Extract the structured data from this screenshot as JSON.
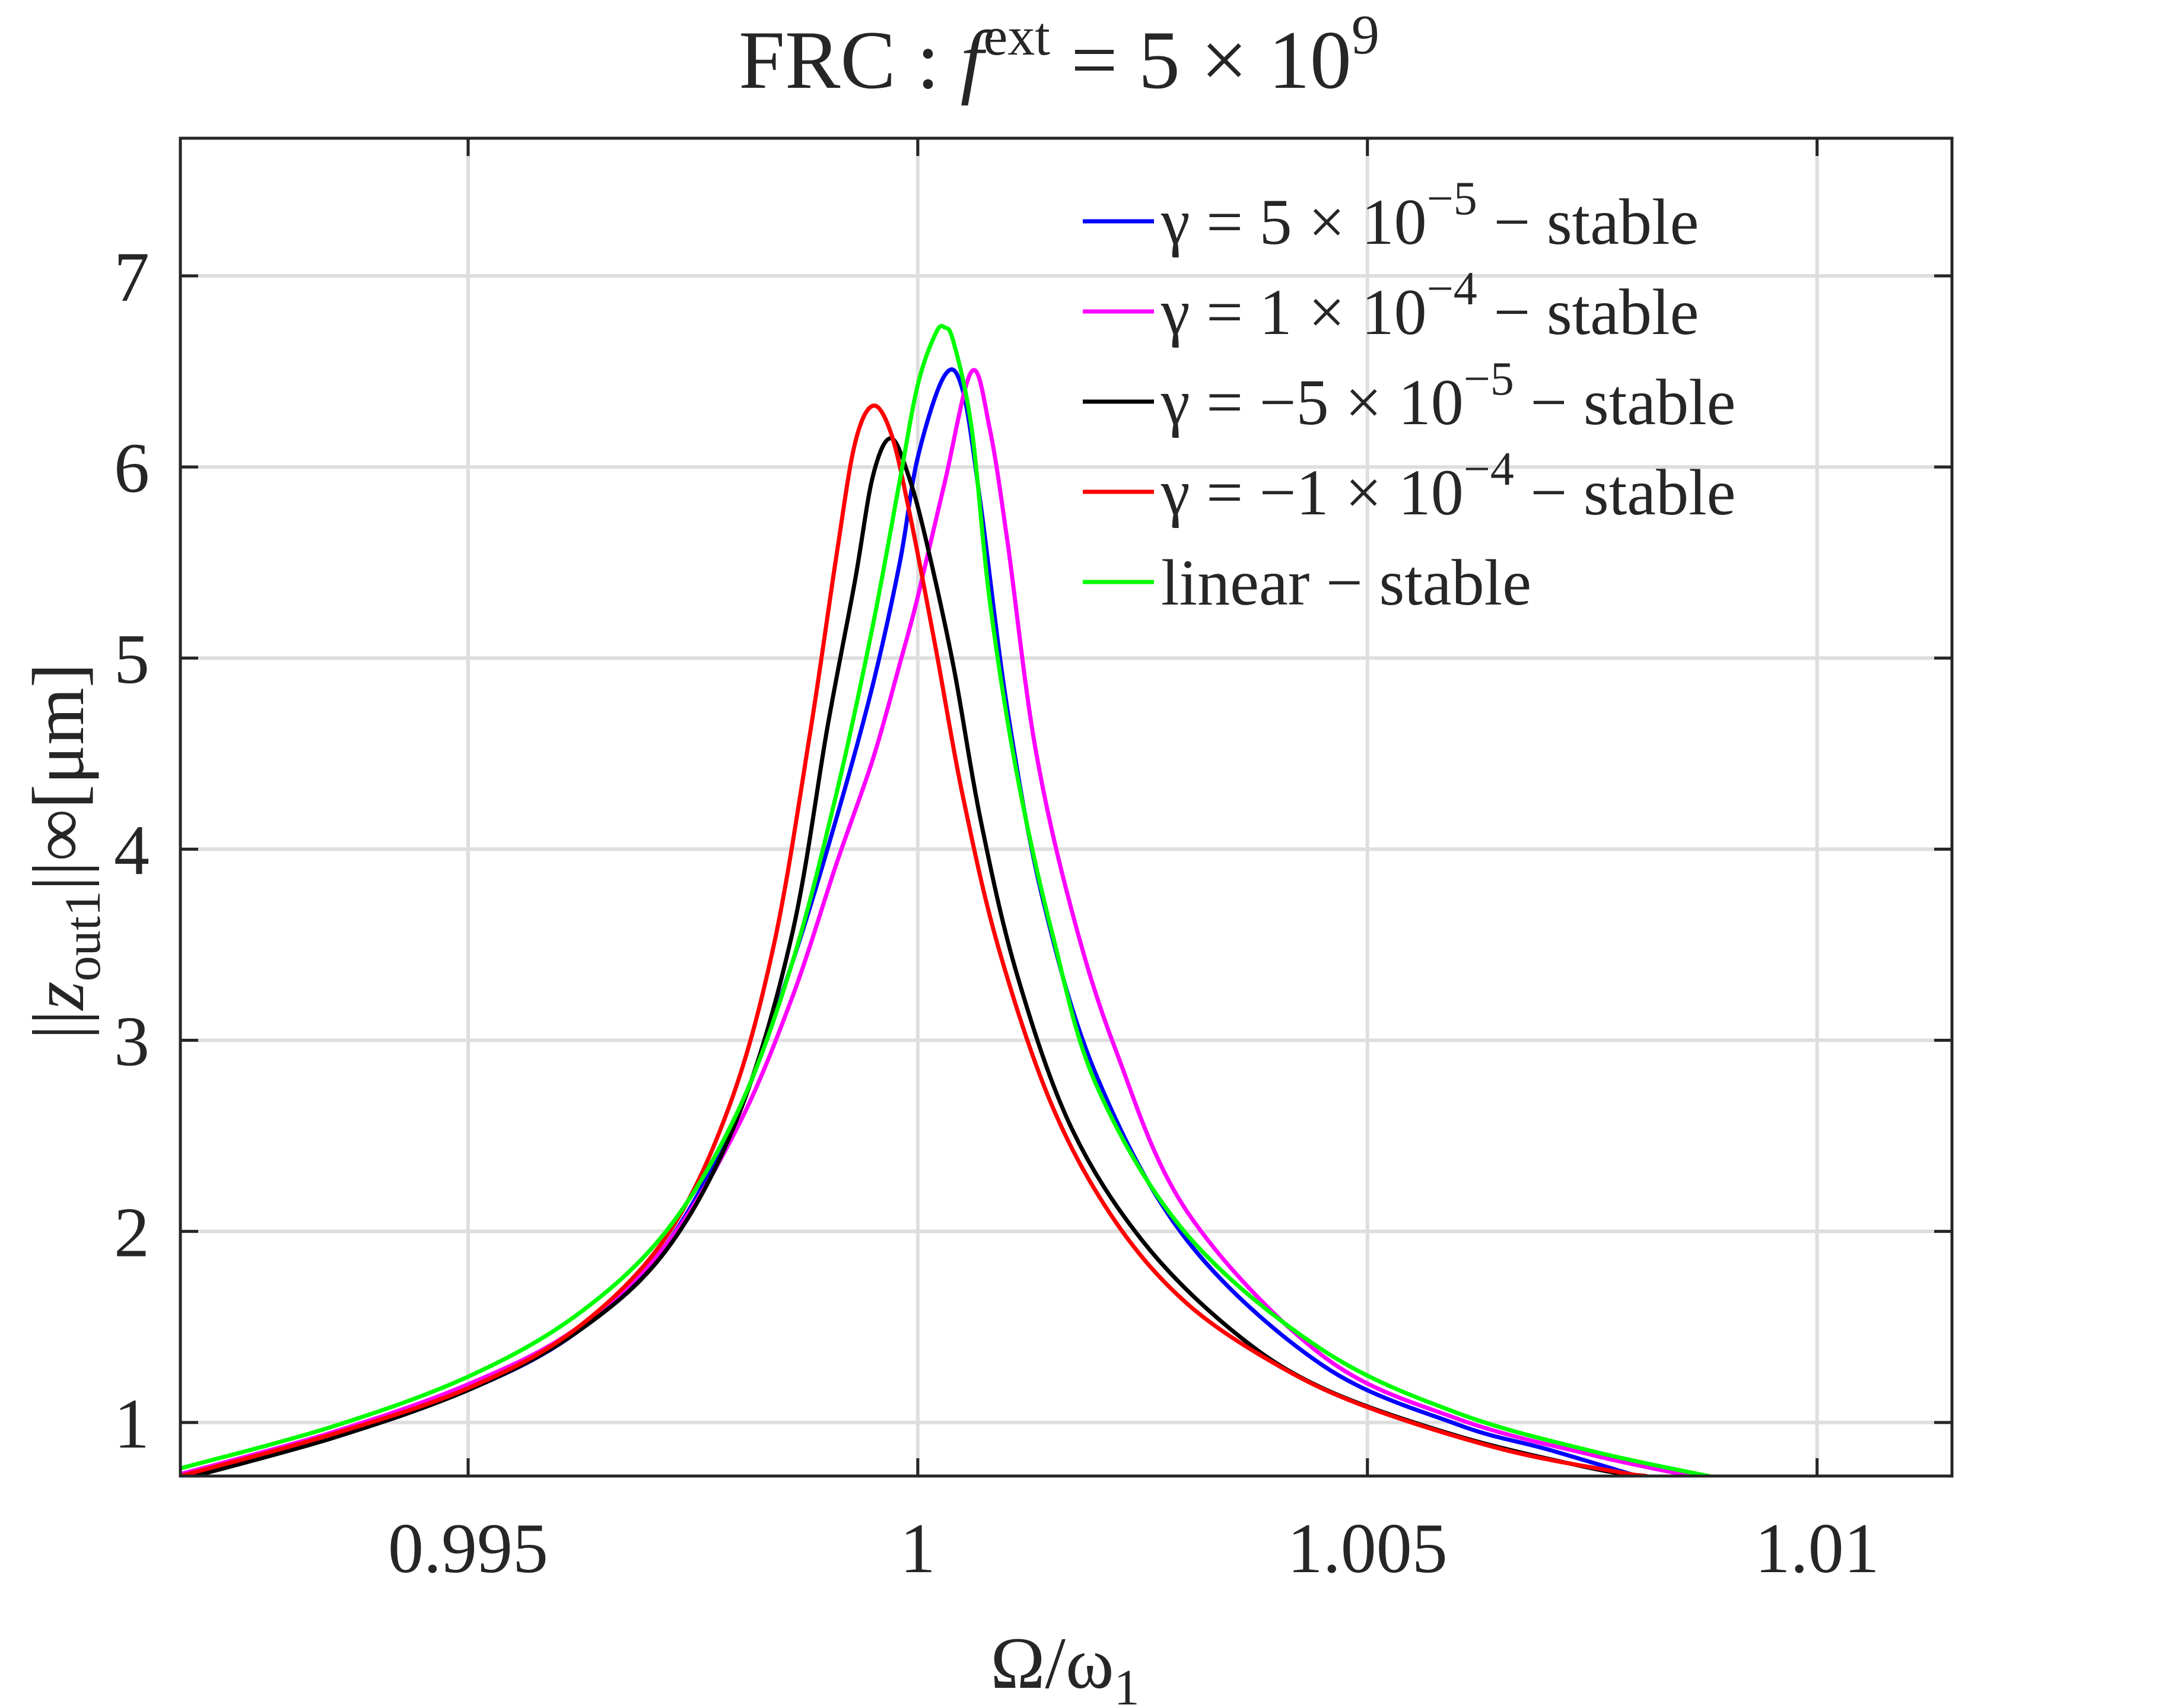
{
  "chart_data": {
    "type": "line",
    "title": "FRC :  f^ext = 5 × 10^9",
    "title_parts": {
      "main": "FRC :  ",
      "var": "f",
      "sup": "ext",
      "rhs": " = 5 × 10",
      "exp": "9"
    },
    "xlabel": "Ω/ω₁",
    "xlabel_parts": {
      "main": "Ω/ω",
      "sub": "1"
    },
    "ylabel": "||z_out1||∞[μm]",
    "ylabel_parts": {
      "pre": "||",
      "var": "z",
      "sub": "out1",
      "post": "||∞[μm]"
    },
    "xlim": [
      0.9918,
      1.0115
    ],
    "ylim": [
      0.72,
      7.72
    ],
    "xticks": [
      0.995,
      1.0,
      1.005,
      1.01
    ],
    "xtick_labels": [
      "0.995",
      "1",
      "1.005",
      "1.01"
    ],
    "yticks": [
      1,
      2,
      3,
      4,
      5,
      6,
      7
    ],
    "ytick_labels": [
      "1",
      "2",
      "3",
      "4",
      "5",
      "6",
      "7"
    ],
    "grid": true,
    "legend_position": "top-right",
    "series": [
      {
        "name": "γ = 5 × 10⁻⁵ – stable",
        "color": "#0000ff",
        "label": {
          "pre": "γ = 5 × 10",
          "exp": "−5",
          "post": " − stable"
        },
        "x": [
          0.9918,
          0.9935,
          0.995,
          0.9962,
          0.9972,
          0.998,
          0.9986,
          0.9991,
          0.9995,
          0.9998,
          1.0,
          1.0003,
          1.0005,
          1.0007,
          1.001,
          1.0014,
          1.002,
          1.003,
          1.0045,
          1.006,
          1.007,
          1.008
        ],
        "y": [
          0.72,
          0.93,
          1.17,
          1.47,
          1.93,
          2.62,
          3.4,
          4.17,
          4.86,
          5.5,
          6.05,
          6.48,
          6.4,
          5.8,
          4.72,
          3.72,
          2.8,
          1.95,
          1.3,
          0.99,
          0.86,
          0.72
        ]
      },
      {
        "name": "γ = 1 × 10⁻⁴ – stable",
        "color": "#ff00ff",
        "label": {
          "pre": "γ = 1 × 10",
          "exp": "−4",
          "post": " − stable"
        },
        "x": [
          0.9918,
          0.9935,
          0.995,
          0.9962,
          0.9972,
          0.998,
          0.9986,
          0.9991,
          0.9995,
          0.9998,
          1.0,
          1.0003,
          1.0006,
          1.0008,
          1.001,
          1.0013,
          1.0017,
          1.0022,
          1.003,
          1.0045,
          1.006,
          1.0075,
          1.0086
        ],
        "y": [
          0.73,
          0.95,
          1.2,
          1.49,
          1.93,
          2.55,
          3.22,
          3.93,
          4.47,
          4.97,
          5.32,
          5.92,
          6.5,
          6.2,
          5.6,
          4.55,
          3.7,
          2.95,
          2.1,
          1.35,
          1.02,
          0.83,
          0.72
        ]
      },
      {
        "name": "γ = −5 × 10⁻⁵ – stable",
        "color": "#000000",
        "label": {
          "pre": "γ = −5 × 10",
          "exp": "−5",
          "post": " − stable"
        },
        "x": [
          0.9918,
          0.9935,
          0.995,
          0.9962,
          0.9972,
          0.998,
          0.9986,
          0.999,
          0.9993,
          0.9995,
          0.9997,
          0.9999,
          1.0001,
          1.0004,
          1.0007,
          1.0011,
          1.0017,
          1.0025,
          1.0035,
          1.0045,
          1.006,
          1.0075,
          1.0081
        ],
        "y": [
          0.7,
          0.92,
          1.17,
          1.47,
          1.9,
          2.6,
          3.55,
          4.65,
          5.4,
          5.95,
          6.15,
          5.95,
          5.6,
          4.95,
          4.15,
          3.35,
          2.55,
          1.95,
          1.48,
          1.18,
          0.93,
          0.76,
          0.72
        ]
      },
      {
        "name": "γ = −1 × 10⁻⁴ – stable",
        "color": "#ff0000",
        "label": {
          "pre": "γ = −1 × 10",
          "exp": "−4",
          "post": " − stable"
        },
        "x": [
          0.9918,
          0.9935,
          0.995,
          0.9962,
          0.9972,
          0.9979,
          0.9984,
          0.9988,
          0.9991,
          0.9993,
          0.9995,
          0.9997,
          0.9999,
          1.0002,
          1.0005,
          1.0009,
          1.0015,
          1.0022,
          1.003,
          1.004,
          1.005,
          1.0065,
          1.0078,
          1.0081
        ],
        "y": [
          0.72,
          0.94,
          1.18,
          1.49,
          1.97,
          2.65,
          3.5,
          4.6,
          5.55,
          6.12,
          6.32,
          6.18,
          5.78,
          5.05,
          4.28,
          3.48,
          2.65,
          2.05,
          1.62,
          1.3,
          1.08,
          0.86,
          0.74,
          0.72
        ]
      },
      {
        "name": "linear – stable",
        "color": "#00ff00",
        "label": {
          "pre": "linear",
          "exp": "",
          "post": " − stable"
        },
        "x": [
          0.9918,
          0.9935,
          0.995,
          0.9962,
          0.9972,
          0.998,
          0.9986,
          0.9991,
          0.9995,
          0.9998,
          1.0,
          1.0002,
          1.0003,
          1.0004,
          1.0006,
          1.0008,
          1.0011,
          1.0015,
          1.002,
          1.003,
          1.0045,
          1.006,
          1.0075,
          1.009
        ],
        "y": [
          0.76,
          0.98,
          1.24,
          1.56,
          2.0,
          2.63,
          3.4,
          4.3,
          5.17,
          5.93,
          6.43,
          6.7,
          6.73,
          6.65,
          6.2,
          5.3,
          4.4,
          3.55,
          2.75,
          1.98,
          1.38,
          1.05,
          0.85,
          0.7
        ]
      }
    ]
  }
}
